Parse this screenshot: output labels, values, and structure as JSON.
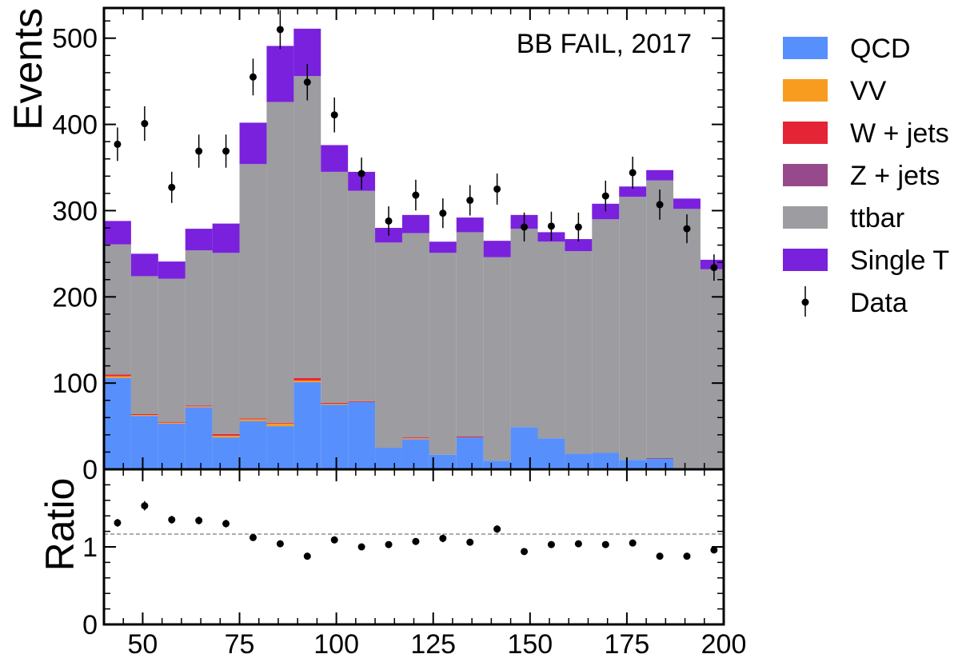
{
  "chart_data": [
    {
      "type": "bar",
      "stacked": true,
      "annotation": "BB FAIL, 2017",
      "ylabel": "Events",
      "xlabel": "",
      "xlim": [
        40,
        200
      ],
      "ylim": [
        0,
        535
      ],
      "yticks": [
        "0",
        "100",
        "200",
        "300",
        "400",
        "500"
      ],
      "bin_edges": [
        40,
        47,
        54,
        61,
        68,
        75,
        82,
        89,
        96,
        103,
        110,
        117,
        124,
        131,
        138,
        145,
        152,
        159,
        166,
        173,
        180,
        187,
        194,
        201
      ],
      "series": [
        {
          "name": "QCD",
          "color": "#5790fc",
          "values": [
            106,
            62,
            53,
            72,
            37,
            56,
            50,
            101,
            75,
            78,
            25,
            35,
            17,
            37,
            10,
            49,
            36,
            18,
            19,
            11,
            12,
            0,
            0
          ]
        },
        {
          "name": "VV",
          "color": "#f89c20",
          "values": [
            2,
            1,
            1,
            1,
            2,
            2,
            3,
            2,
            1,
            0,
            0,
            1,
            0,
            0,
            0,
            0,
            0,
            0,
            0,
            0,
            0,
            0,
            0
          ]
        },
        {
          "name": "W + jets",
          "color": "#e42536",
          "values": [
            2,
            1,
            1,
            1,
            2,
            1,
            1,
            3,
            1,
            1,
            0,
            1,
            0,
            1,
            0,
            0,
            0,
            0,
            0,
            0,
            0,
            0,
            0
          ]
        },
        {
          "name": "Z + jets",
          "color": "#964a8b",
          "values": [
            0,
            0,
            0,
            0,
            0,
            0,
            0,
            0,
            0,
            0,
            0,
            0,
            0,
            0,
            0,
            0,
            0,
            0,
            0,
            0,
            1,
            0,
            0
          ]
        },
        {
          "name": "ttbar",
          "color": "#9c9ca1",
          "values": [
            151,
            160,
            166,
            180,
            210,
            295,
            372,
            350,
            268,
            244,
            238,
            237,
            234,
            237,
            236,
            230,
            228,
            235,
            271,
            305,
            322,
            302,
            232
          ]
        },
        {
          "name": "Single T",
          "color": "#7a21dd",
          "values": [
            27,
            26,
            20,
            25,
            34,
            48,
            65,
            55,
            31,
            22,
            17,
            21,
            13,
            17,
            19,
            16,
            11,
            14,
            18,
            12,
            12,
            12,
            11
          ]
        }
      ],
      "data_series": {
        "name": "Data",
        "x": [
          43.5,
          50.5,
          57.5,
          64.5,
          71.5,
          78.5,
          85.5,
          92.5,
          99.5,
          106.5,
          113.5,
          120.5,
          127.5,
          134.5,
          141.5,
          148.5,
          155.5,
          162.5,
          169.5,
          176.5,
          183.5,
          190.5,
          197.5
        ],
        "y": [
          377,
          401,
          327,
          369,
          369,
          455,
          510,
          449,
          411,
          343,
          288,
          318,
          297,
          312,
          325,
          281,
          282,
          281,
          317,
          344,
          307,
          279,
          234
        ]
      },
      "legend": {
        "placement": "right-outside"
      }
    },
    {
      "type": "scatter",
      "ylabel": "Ratio",
      "xlim": [
        40,
        200
      ],
      "ylim": [
        0,
        2
      ],
      "xticks": [
        "50",
        "75",
        "100",
        "125",
        "150",
        "175",
        "200"
      ],
      "yticks": [
        "0",
        "1"
      ],
      "reference_line": 1,
      "x": [
        43.5,
        50.5,
        57.5,
        64.5,
        71.5,
        78.5,
        85.5,
        92.5,
        99.5,
        106.5,
        113.5,
        120.5,
        127.5,
        134.5,
        141.5,
        148.5,
        155.5,
        162.5,
        169.5,
        176.5,
        183.5,
        190.5,
        197.5
      ],
      "y": [
        1.31,
        1.53,
        1.35,
        1.34,
        1.3,
        1.12,
        1.04,
        0.88,
        1.09,
        1.0,
        1.03,
        1.07,
        1.11,
        1.06,
        1.23,
        0.94,
        1.03,
        1.04,
        1.03,
        1.05,
        0.88,
        0.88,
        0.96
      ],
      "yerr": [
        0.05,
        0.06,
        0.05,
        0.05,
        0.05,
        0.04,
        0.03,
        0.03,
        0.04,
        0.04,
        0.04,
        0.04,
        0.05,
        0.04,
        0.05,
        0.04,
        0.04,
        0.04,
        0.04,
        0.04,
        0.03,
        0.04,
        0.04
      ]
    }
  ]
}
